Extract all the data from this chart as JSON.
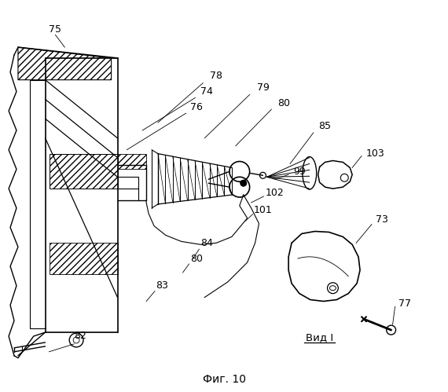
{
  "figsize": [
    5.7,
    4.99
  ],
  "dpi": 100,
  "background_color": "#ffffff",
  "line_color": "#000000",
  "title": "Фиг. 10",
  "view_label": "Вид I"
}
